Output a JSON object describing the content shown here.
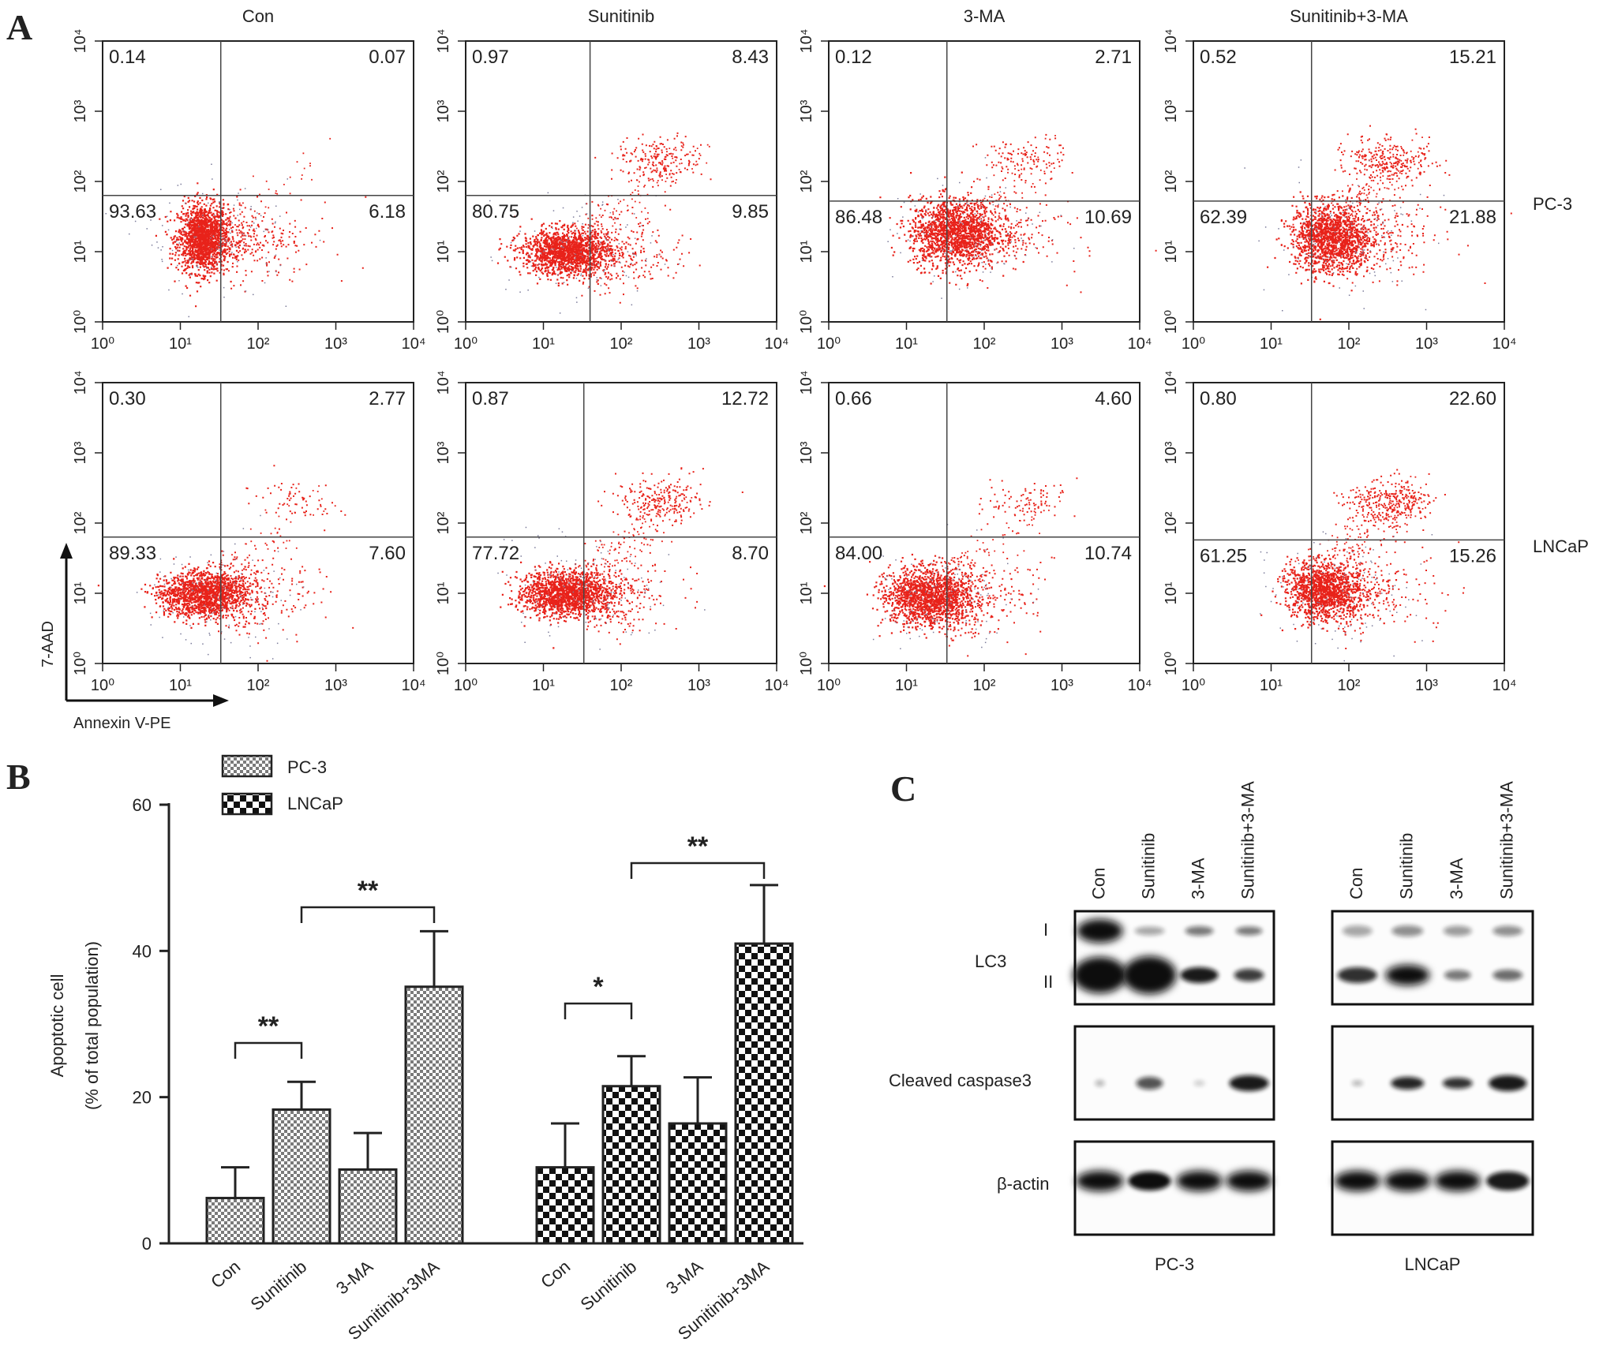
{
  "panels": {
    "a": "A",
    "b": "B",
    "c": "C"
  },
  "colors": {
    "dot": "#e8221a",
    "dot_dense": "#d61a10",
    "stray": "#7b7b9a",
    "axis": "#222222",
    "band": "#0d0d0d",
    "pattern_pc3": "#7a7a7a",
    "pattern_lncap": "#111111"
  },
  "flow": {
    "columns": [
      "Con",
      "Sunitinib",
      "3-MA",
      "Sunitinib+3-MA"
    ],
    "rows": [
      "PC-3",
      "LNCaP"
    ],
    "y_label": "7-AAD",
    "x_label": "Annexin V-PE",
    "tick_labels": [
      "10⁰",
      "10¹",
      "10²",
      "10³",
      "10⁴"
    ],
    "y_tick_labels": [
      "10⁰",
      "10¹",
      "10²",
      "10³",
      "10⁴"
    ],
    "quadrants": [
      [
        {
          "ul": "0.14",
          "ur": "0.07",
          "ll": "93.63",
          "lr": "6.18"
        },
        {
          "ul": "0.97",
          "ur": "8.43",
          "ll": "80.75",
          "lr": "9.85"
        },
        {
          "ul": "0.12",
          "ur": "2.71",
          "ll": "86.48",
          "lr": "10.69"
        },
        {
          "ul": "0.52",
          "ur": "15.21",
          "ll": "62.39",
          "lr": "21.88"
        }
      ],
      [
        {
          "ul": "0.30",
          "ur": "2.77",
          "ll": "89.33",
          "lr": "7.60"
        },
        {
          "ul": "0.87",
          "ur": "12.72",
          "ll": "77.72",
          "lr": "8.70"
        },
        {
          "ul": "0.66",
          "ur": "4.60",
          "ll": "84.00",
          "lr": "10.74"
        },
        {
          "ul": "0.80",
          "ur": "22.60",
          "ll": "61.25",
          "lr": "15.26"
        }
      ]
    ]
  },
  "chart_data": {
    "type": "bar",
    "ylabel": "Apoptotic cell",
    "ylabel2": "(% of total population)",
    "ylim": [
      0,
      60
    ],
    "yticks": [
      0,
      20,
      40,
      60
    ],
    "groups": [
      {
        "name": "PC-3",
        "categories": [
          "Con",
          "Sunitinib",
          "3-MA",
          "Sunitinib+3MA"
        ],
        "values": [
          6.2,
          18.3,
          10.1,
          35.1
        ],
        "errors": [
          4.2,
          3.8,
          5.0,
          7.6
        ],
        "pattern": "fine"
      },
      {
        "name": "LNCaP",
        "categories": [
          "Con",
          "Sunitinib",
          "3-MA",
          "Sunitinib+3MA"
        ],
        "values": [
          10.4,
          21.5,
          16.4,
          41.0
        ],
        "errors": [
          6.0,
          4.1,
          6.3,
          8.0
        ],
        "pattern": "checker"
      }
    ],
    "significance": [
      {
        "group": 0,
        "from": 0,
        "to": 1,
        "label": "**"
      },
      {
        "group": 0,
        "from": 1,
        "to": 3,
        "label": "**"
      },
      {
        "group": 1,
        "from": 0,
        "to": 1,
        "label": "*"
      },
      {
        "group": 1,
        "from": 1,
        "to": 3,
        "label": "**"
      }
    ]
  },
  "blot": {
    "lanes": [
      "Con",
      "Sunitinib",
      "3-MA",
      "Sunitinib+3-MA"
    ],
    "row_labels": {
      "lc3": "LC3",
      "lc3_i": "I",
      "lc3_ii": "II",
      "caspase": "Cleaved caspase3",
      "actin": "β-actin"
    },
    "cell_lines": [
      "PC-3",
      "LNCaP"
    ]
  }
}
